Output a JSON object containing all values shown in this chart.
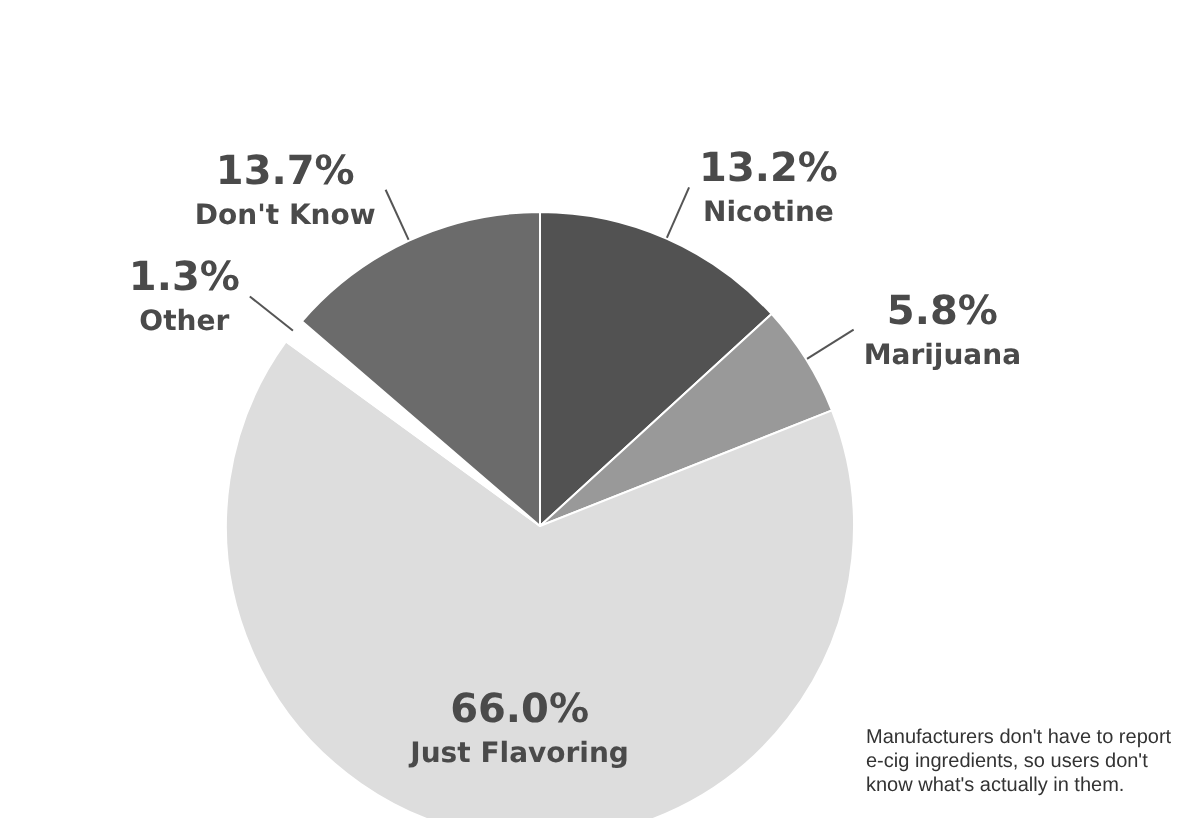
{
  "chart_data": {
    "type": "pie",
    "categories": [
      "Nicotine",
      "Marijuana",
      "Just Flavoring",
      "Other",
      "Don't Know"
    ],
    "values": [
      13.2,
      5.8,
      66.0,
      1.3,
      13.7
    ],
    "value_labels": [
      "13.2%",
      "5.8%",
      "66.0%",
      "1.3%",
      "13.7%"
    ],
    "colors": [
      "#525252",
      "#999999",
      "#dddddd",
      "#ffffff",
      "#6b6b6b"
    ],
    "annotations": [
      "Manufacturers don't have to report e-cig ingredients, so users don't know what's actually in them."
    ],
    "legend": false
  }
}
